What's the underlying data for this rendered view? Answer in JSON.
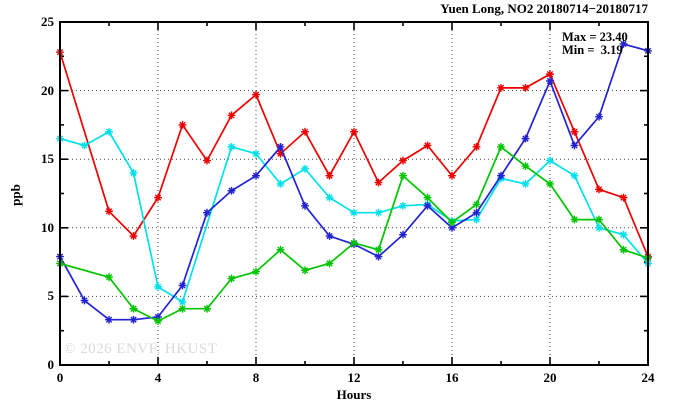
{
  "title": "Yuen Long, NO2 20180714−20180717",
  "annotation": {
    "max_label": "Max = 23.40",
    "min_label": "Min =  3.19"
  },
  "watermark": "© 2026 ENVF, HKUST",
  "axes": {
    "x_label": "Hours",
    "y_label": "ppb"
  },
  "chart_data": {
    "type": "line",
    "title": "Yuen Long, NO2 20180714−20180717",
    "xlabel": "Hours",
    "ylabel": "ppb",
    "xlim": [
      0,
      24
    ],
    "ylim": [
      0,
      25
    ],
    "x_major_ticks": [
      0,
      4,
      8,
      12,
      16,
      20,
      24
    ],
    "x_minor_ticks": [
      2,
      6,
      10,
      14,
      18,
      22
    ],
    "y_major_ticks": [
      0,
      5,
      10,
      15,
      20,
      25
    ],
    "y_minor_ticks": [
      2.5,
      7.5,
      12.5,
      17.5,
      22.5
    ],
    "grid_x": [
      4,
      8,
      12,
      16,
      20
    ],
    "grid_y": [
      5,
      10,
      15,
      20
    ],
    "grid_on": true,
    "legend_position": "none",
    "marker": "asterisk",
    "x": [
      0,
      1,
      2,
      3,
      4,
      5,
      6,
      7,
      8,
      9,
      10,
      11,
      12,
      13,
      14,
      15,
      16,
      17,
      18,
      19,
      20,
      21,
      22,
      23,
      24
    ],
    "series": [
      {
        "name": "red-line",
        "color": "#ee0000",
        "values": [
          22.8,
          null,
          11.2,
          9.4,
          12.2,
          17.5,
          14.9,
          18.2,
          19.7,
          15.4,
          17.0,
          13.8,
          17.0,
          13.3,
          14.9,
          16.0,
          13.8,
          15.9,
          20.2,
          20.2,
          21.2,
          17.0,
          12.8,
          12.2,
          7.9
        ]
      },
      {
        "name": "cyan-line",
        "color": "#00e0ea",
        "values": [
          16.5,
          16.0,
          17.0,
          14.0,
          5.7,
          4.6,
          null,
          15.9,
          15.4,
          13.2,
          14.3,
          12.2,
          11.1,
          11.1,
          11.6,
          11.7,
          10.5,
          10.6,
          13.6,
          13.2,
          14.9,
          13.8,
          10.0,
          9.5,
          7.4
        ]
      },
      {
        "name": "blue-line",
        "color": "#2222d3",
        "values": [
          7.9,
          4.7,
          3.3,
          3.3,
          3.5,
          5.8,
          11.1,
          12.7,
          13.8,
          15.9,
          11.6,
          9.4,
          8.8,
          7.9,
          9.5,
          11.6,
          10.0,
          11.1,
          13.8,
          16.5,
          20.7,
          16.0,
          18.1,
          23.4,
          22.9
        ]
      },
      {
        "name": "green-line",
        "color": "#00c400",
        "values": [
          7.4,
          null,
          6.4,
          4.1,
          3.2,
          4.1,
          4.1,
          6.3,
          6.8,
          8.4,
          6.9,
          7.4,
          8.9,
          8.4,
          13.8,
          12.2,
          10.4,
          11.7,
          15.9,
          14.5,
          13.2,
          10.6,
          10.6,
          8.4,
          7.8
        ]
      }
    ],
    "stats": {
      "max": 23.4,
      "min": 3.19
    }
  }
}
